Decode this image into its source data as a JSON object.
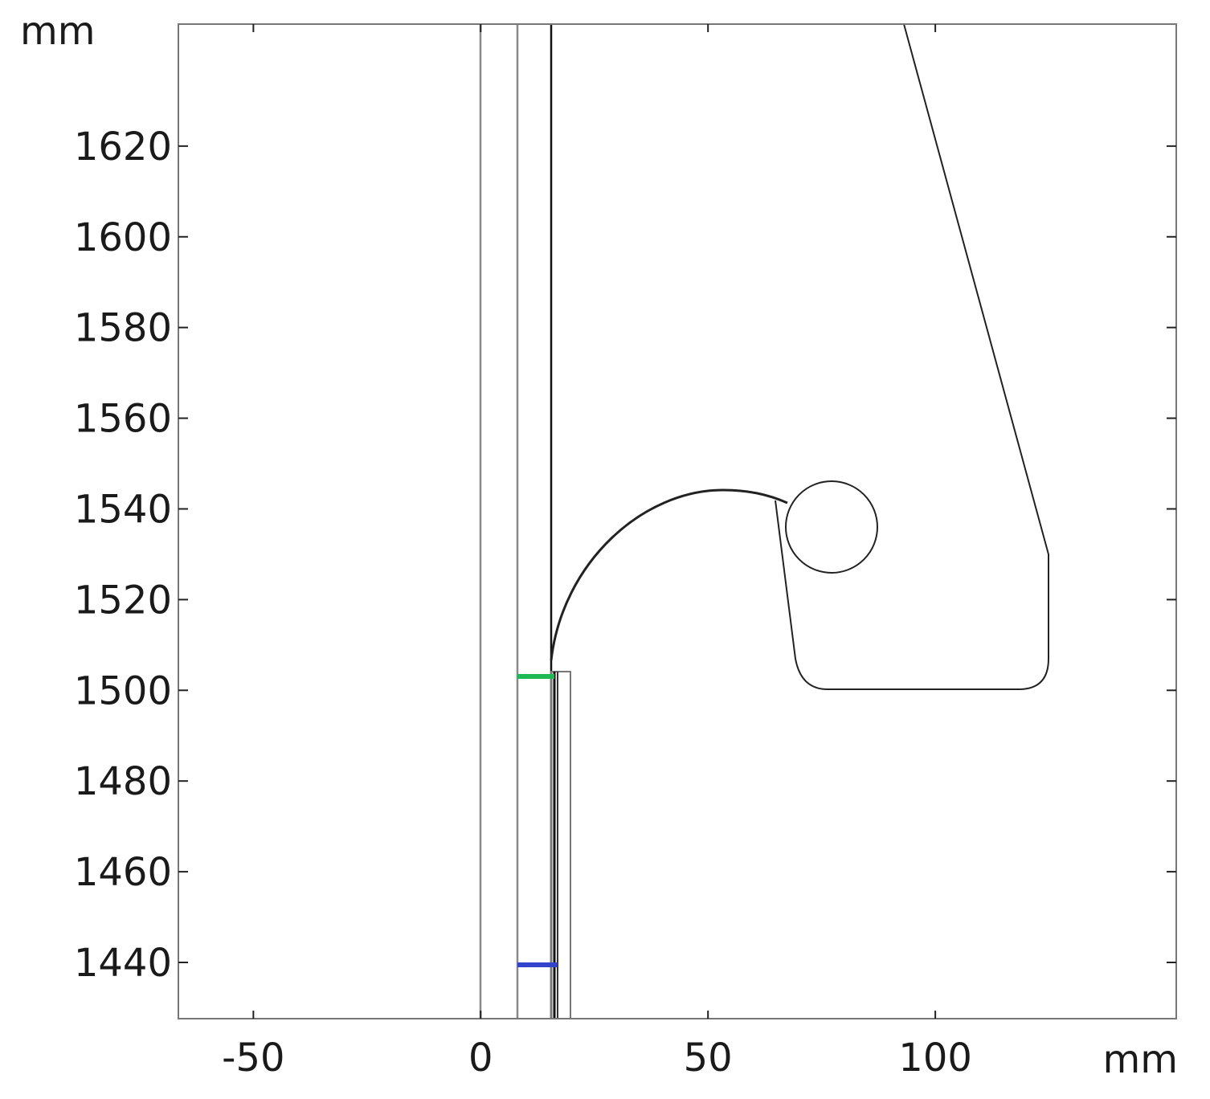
{
  "chart_data": {
    "type": "geometry",
    "x_label": "mm",
    "y_label": "mm",
    "xlim": [
      -66.5,
      153
    ],
    "xticks": [
      -50,
      0,
      50,
      100
    ],
    "ylim": [
      1427.6,
      1646.9
    ],
    "yticks": [
      1440,
      1460,
      1480,
      1500,
      1520,
      1540,
      1560,
      1580,
      1600,
      1620
    ]
  }
}
